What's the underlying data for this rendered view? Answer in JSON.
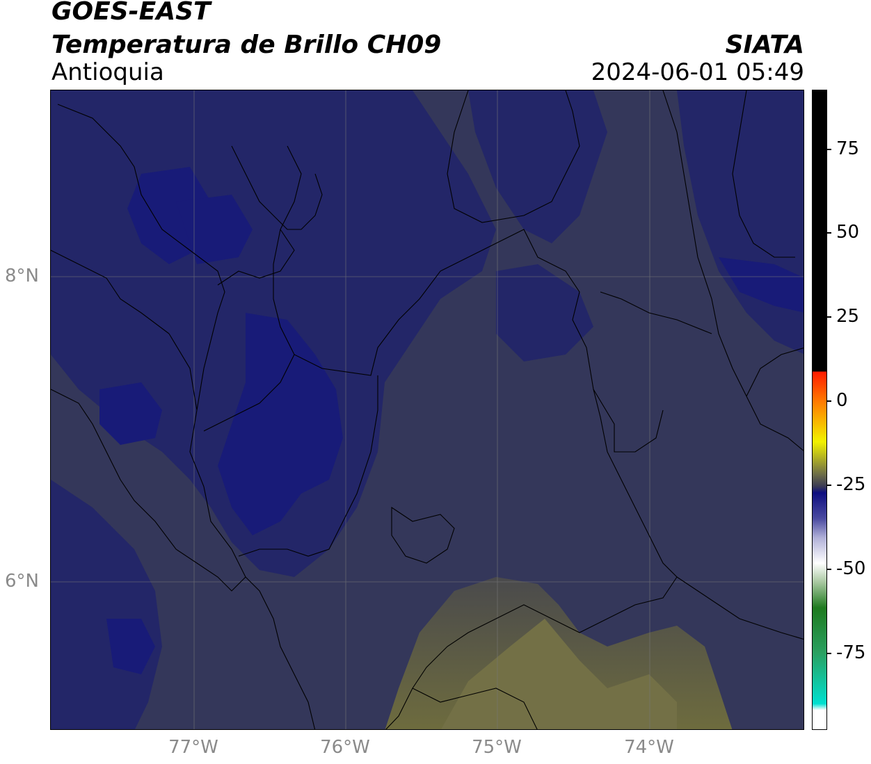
{
  "header": {
    "title_line1": "GOES-EAST",
    "title_line2": "Temperatura de Brillo CH09",
    "region": "Antioquia",
    "org": "SIATA",
    "datetime": "2024-06-01 05:49"
  },
  "axes": {
    "lat_ticks": [
      "8°N",
      "6°N"
    ],
    "lon_ticks": [
      "77°W",
      "76°W",
      "75°W",
      "74°W"
    ]
  },
  "colorbar": {
    "ticks": [
      "75",
      "50",
      "25",
      "0",
      "-25",
      "-50",
      "-75"
    ],
    "colors": {
      "black": "#000000",
      "red": "#ff1a00",
      "yellow": "#f2f200",
      "olive": "#707046",
      "navy": "#0e0e80",
      "white": "#ffffff",
      "green": "#1f7a1f",
      "cyan": "#00e0d0"
    }
  },
  "map": {
    "background_color": "#34375a",
    "cloud_color": "#1f236e",
    "warm_color": "#6b6a3c"
  }
}
